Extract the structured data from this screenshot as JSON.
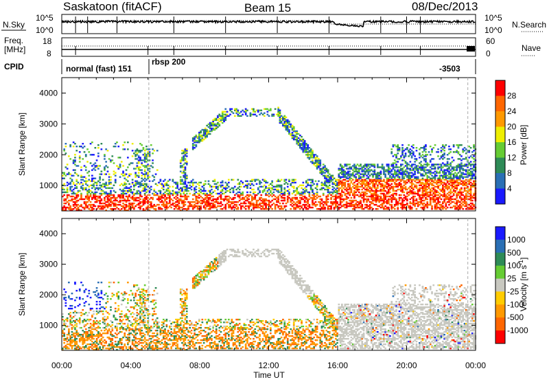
{
  "header": {
    "station": "Saskatoon (fitACF)",
    "beam": "Beam 15",
    "date": "08/Dec/2013"
  },
  "noise_panel": {
    "left_label": "N.Sky",
    "right_label": "N.Search",
    "left_ticks": [
      "10^5",
      "10^0"
    ],
    "right_ticks": [
      "10^5",
      "10^0"
    ]
  },
  "freq_panel": {
    "left_label_1": "Freq.",
    "left_label_2": "[MHz]",
    "left_ticks": [
      "18",
      "8"
    ],
    "right_ticks": [
      "60",
      "0"
    ],
    "right_label": "Nave"
  },
  "cpid": {
    "label": "CPID",
    "mode_1": "normal (fast) 151",
    "mode_2": "rbsp 200",
    "mode_3": "-3503"
  },
  "colors": {
    "power": [
      "#1a1aff",
      "#2a6fb5",
      "#2e8b57",
      "#66cc33",
      "#eeee00",
      "#ff9900",
      "#ff6600",
      "#ff0000"
    ],
    "velocity": [
      "#ff0000",
      "#ff6600",
      "#ff9900",
      "#ffcc00",
      "#c8c8c0",
      "#66cc33",
      "#2e8b57",
      "#2a6fb5",
      "#1a1aff"
    ]
  },
  "chart_data": [
    {
      "type": "heatmap",
      "title": "Power",
      "ylabel": "Slant Range [km]",
      "xlabel": "Time UT",
      "ylim": [
        180,
        4500
      ],
      "y_ticks": [
        1000,
        2000,
        3000,
        4000
      ],
      "x_ticks": [
        "00:00",
        "04:00",
        "08:00",
        "12:00",
        "16:00",
        "20:00",
        "00:00"
      ],
      "colorbar": {
        "label": "Power [dB]",
        "ticks": [
          "4",
          "8",
          "12",
          "16",
          "20",
          "24",
          "28"
        ]
      },
      "features": [
        {
          "name": "near-range band",
          "t_start": 0,
          "t_end": 24,
          "range_km": [
            200,
            1200
          ]
        },
        {
          "name": "ascending arc",
          "t_start": 7.5,
          "t_end": 9.5,
          "range_km": [
            2300,
            3300
          ]
        },
        {
          "name": "descending arc",
          "t_start": 13,
          "t_end": 16,
          "range_km": [
            900,
            3300
          ]
        },
        {
          "name": "evening band",
          "t_start": 16,
          "t_end": 24,
          "range_km": [
            600,
            1800
          ]
        }
      ]
    },
    {
      "type": "heatmap",
      "title": "Velocity",
      "ylabel": "Slant Range [km]",
      "xlabel": "Time UT",
      "ylim": [
        180,
        4500
      ],
      "y_ticks": [
        1000,
        2000,
        3000,
        4000
      ],
      "x_ticks": [
        "00:00",
        "04:00",
        "08:00",
        "12:00",
        "16:00",
        "20:00",
        "00:00"
      ],
      "colorbar": {
        "label": "Velocity [m s-1]",
        "ticks": [
          "1000",
          "500",
          "100",
          "25",
          "-25",
          "-100",
          "-500",
          "-1000"
        ]
      }
    }
  ]
}
